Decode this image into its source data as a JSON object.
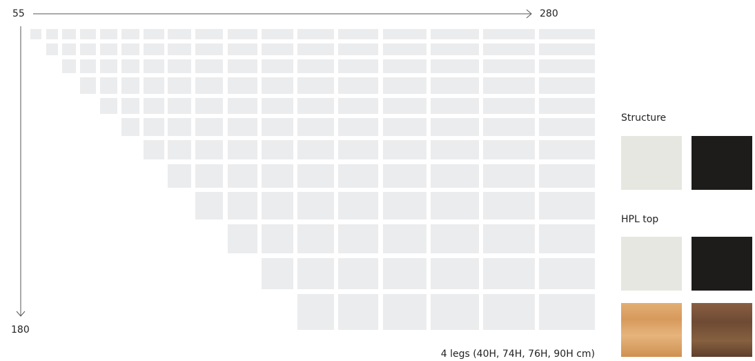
{
  "axis": {
    "start_width": "55",
    "end_width": "280",
    "end_depth": "180"
  },
  "legs_note": "4 legs (40H, 74H, 76H, 90H cm)",
  "finishes": {
    "structure_title": "Structure",
    "top_title": "HPL top"
  }
}
